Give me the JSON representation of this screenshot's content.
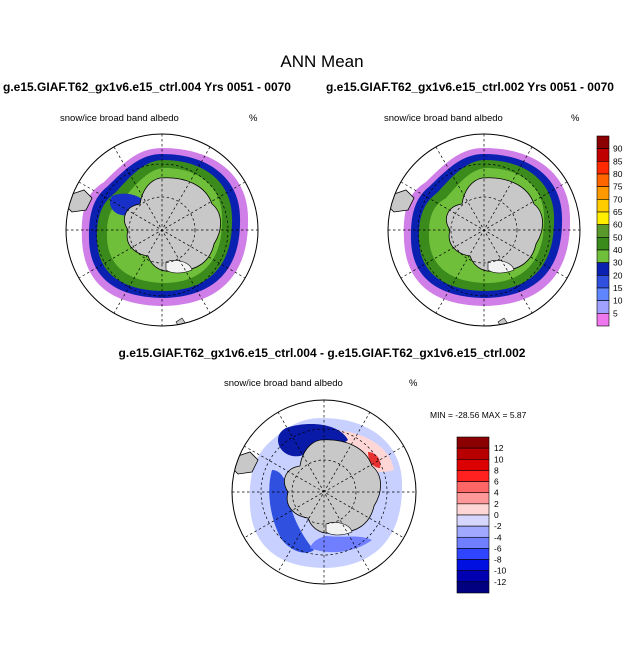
{
  "title": "ANN Mean",
  "case_a_label": "g.e15.GIAF.T62_gx1v6.e15_ctrl.004  Yrs 0051 - 0070",
  "case_b_label": "g.e15.GIAF.T62_gx1v6.e15_ctrl.002  Yrs 0051 - 0070",
  "diff_label": "g.e15.GIAF.T62_gx1v6.e15_ctrl.004 - g.e15.GIAF.T62_gx1v6.e15_ctrl.002",
  "panels": {
    "case_a": {
      "variable": "snow/ice broad band albedo",
      "units": "%"
    },
    "case_b": {
      "variable": "snow/ice broad band albedo",
      "units": "%"
    },
    "diff": {
      "variable": "snow/ice broad band albedo",
      "units": "%"
    }
  },
  "diff_stats": "MIN = -28.56 MAX =   5.87",
  "colorbar_abs": {
    "levels": [
      "90",
      "85",
      "80",
      "75",
      "70",
      "65",
      "60",
      "50",
      "40",
      "30",
      "20",
      "15",
      "10",
      "5"
    ],
    "colors": [
      "#8b0000",
      "#c00000",
      "#ff2a00",
      "#ff6600",
      "#ff9900",
      "#ffcc00",
      "#ffee00",
      "#5a9a2a",
      "#3a8a1c",
      "#6fbf3a",
      "#0a20b0",
      "#3050e0",
      "#5f86ff",
      "#a0a0ff",
      "#ee77ee"
    ]
  },
  "colorbar_diff": {
    "levels": [
      "12",
      "10",
      "8",
      "6",
      "4",
      "2",
      "0",
      "-2",
      "-4",
      "-6",
      "-8",
      "-10",
      "-12"
    ],
    "colors": [
      "#8b0000",
      "#b80000",
      "#dd0000",
      "#ff2020",
      "#ff6666",
      "#ff9999",
      "#ffd6d6",
      "#d6d6ff",
      "#a0a8ff",
      "#6f7fff",
      "#2f45ff",
      "#0010e0",
      "#0000b0",
      "#000080"
    ]
  },
  "colors": {
    "land": "#c8c8c8",
    "ice_green": "#3a8a1c",
    "ice_light": "#6fbf3a",
    "ice_blue": "#0a20b0",
    "ice_violet": "#c070e0"
  }
}
